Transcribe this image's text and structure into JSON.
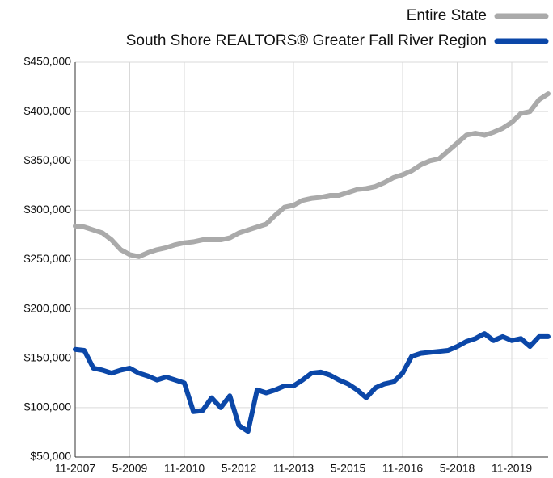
{
  "chart_data": {
    "type": "line",
    "categories": [
      "11-2007",
      null,
      null,
      null,
      null,
      null,
      "5-2009",
      null,
      null,
      null,
      null,
      null,
      "11-2010",
      null,
      null,
      null,
      null,
      null,
      "5-2012",
      null,
      null,
      null,
      null,
      null,
      "11-2013",
      null,
      null,
      null,
      null,
      null,
      "5-2015",
      null,
      null,
      null,
      null,
      null,
      "11-2016",
      null,
      null,
      null,
      null,
      null,
      "5-2018",
      null,
      null,
      null,
      null,
      null,
      "11-2019",
      null,
      null,
      null,
      null
    ],
    "series": [
      {
        "name": "Entire State",
        "color": "#aaaaaa",
        "values": [
          284000,
          283000,
          280000,
          277000,
          270000,
          260000,
          255000,
          253000,
          257000,
          260000,
          262000,
          265000,
          267000,
          268000,
          270000,
          270000,
          270000,
          272000,
          277000,
          280000,
          283000,
          286000,
          295000,
          303000,
          305000,
          310000,
          312000,
          313000,
          315000,
          315000,
          318000,
          321000,
          322000,
          324000,
          328000,
          333000,
          336000,
          340000,
          346000,
          350000,
          352000,
          360000,
          368000,
          376000,
          378000,
          376000,
          379000,
          383000,
          389000,
          398000,
          400000,
          412000,
          418000
        ]
      },
      {
        "name": "South Shore REALTORS® Greater Fall River Region",
        "color": "#0b47a8",
        "values": [
          159000,
          158000,
          140000,
          138000,
          135000,
          138000,
          140000,
          135000,
          132000,
          128000,
          131000,
          128000,
          125000,
          96000,
          97000,
          110000,
          100000,
          112000,
          82000,
          76000,
          118000,
          115000,
          118000,
          122000,
          122000,
          128000,
          135000,
          136000,
          133000,
          128000,
          124000,
          118000,
          110000,
          120000,
          124000,
          126000,
          135000,
          152000,
          155000,
          156000,
          157000,
          158000,
          162000,
          167000,
          170000,
          175000,
          168000,
          172000,
          168000,
          170000,
          162000,
          172000,
          172000
        ]
      }
    ],
    "ylim": [
      50000,
      450000
    ],
    "yticks": [
      {
        "value": 50000,
        "label": "$50,000"
      },
      {
        "value": 100000,
        "label": "$100,000"
      },
      {
        "value": 150000,
        "label": "$150,000"
      },
      {
        "value": 200000,
        "label": "$200,000"
      },
      {
        "value": 250000,
        "label": "$250,000"
      },
      {
        "value": 300000,
        "label": "$300,000"
      },
      {
        "value": 350000,
        "label": "$350,000"
      },
      {
        "value": 400000,
        "label": "$400,000"
      },
      {
        "value": 450000,
        "label": "$450,000"
      }
    ],
    "grid": true,
    "legend": "top-right"
  }
}
